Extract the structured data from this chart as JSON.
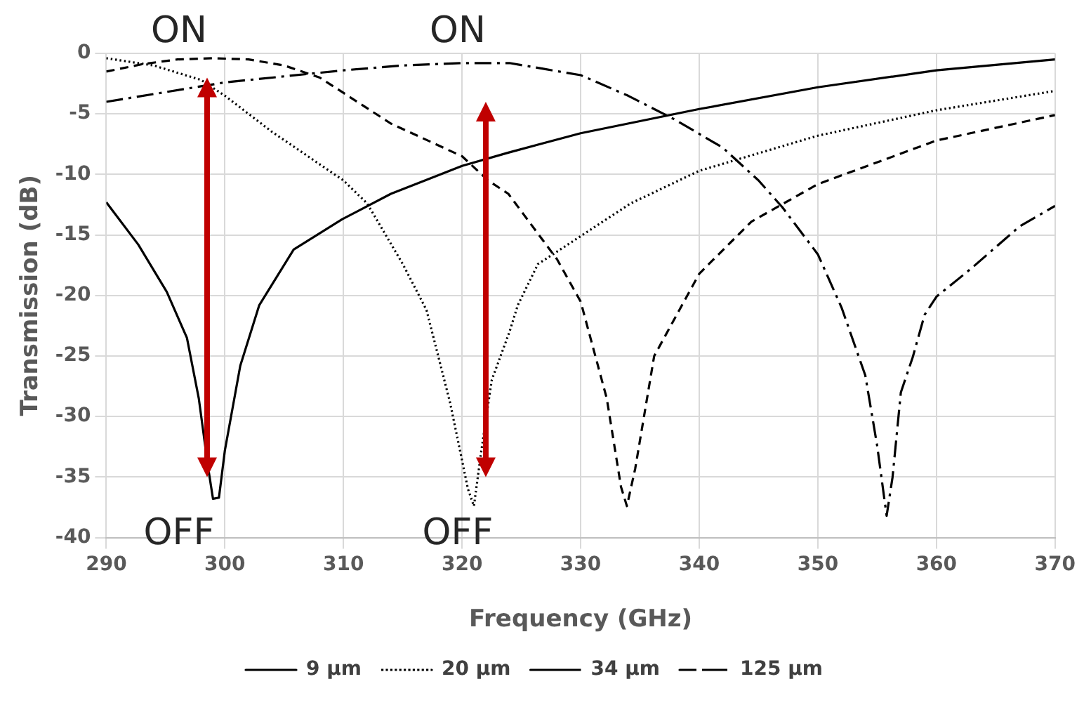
{
  "chart_data": {
    "type": "line",
    "xlabel": "Frequency (GHz)",
    "ylabel": "Transmission (dB)",
    "xlim": [
      290,
      370
    ],
    "xticks": [
      290,
      300,
      310,
      320,
      330,
      340,
      350,
      360,
      370
    ],
    "ylim": [
      -40,
      0
    ],
    "yticks": [
      -40,
      -35,
      -30,
      -25,
      -20,
      -15,
      -10,
      -5,
      0
    ],
    "grid": true,
    "legend": "bottom",
    "marker": "none",
    "annotations": [
      "ON",
      "ON",
      "OFF",
      "OFF"
    ],
    "series": [
      {
        "name": "9 µm",
        "color": "#000000",
        "line_style": "solid",
        "x": [
          290,
          292.7,
          295.1,
          296.8,
          297.8,
          298.6,
          299,
          299.5,
          300,
          301.3,
          302.9,
          305.8,
          309.9,
          314,
          320,
          323.9,
          330,
          340,
          350,
          360,
          370
        ],
        "values": [
          -12.3,
          -15.8,
          -19.7,
          -23.5,
          -28.5,
          -34.3,
          -36.8,
          -36.7,
          -32.8,
          -25.8,
          -20.8,
          -16.2,
          -13.7,
          -11.6,
          -9.3,
          -8.2,
          -6.6,
          -4.6,
          -2.8,
          -1.4,
          -0.5
        ]
      },
      {
        "name": "20 µm",
        "color": "#000000",
        "line_style": "dotted",
        "x": [
          290,
          294,
          298,
          300,
          304,
          310,
          312,
          315,
          317,
          319,
          320.5,
          321,
          321.6,
          322.5,
          324,
          324.7,
          326.4,
          330,
          334.2,
          340,
          350,
          360,
          370
        ],
        "values": [
          -0.4,
          -1,
          -2.2,
          -3.5,
          -6.5,
          -10.5,
          -12.4,
          -17.4,
          -21.2,
          -28.9,
          -36,
          -37.4,
          -33,
          -27,
          -23,
          -20.8,
          -17.4,
          -15.1,
          -12.4,
          -9.7,
          -6.8,
          -4.7,
          -3.1
        ]
      },
      {
        "name": "34 µm",
        "color": "#000000",
        "line_style": "dashed",
        "x": [
          290,
          293,
          296,
          299,
          302,
          305,
          308,
          314,
          320,
          322.2,
          323.9,
          328,
          330,
          332.2,
          333.4,
          333.9,
          334.6,
          336.2,
          340,
          344.4,
          350,
          360,
          370
        ],
        "values": [
          -1.5,
          -0.9,
          -0.5,
          -0.4,
          -0.5,
          -1,
          -2,
          -5.8,
          -8.5,
          -10.5,
          -11.6,
          -17,
          -20.5,
          -28.5,
          -35.8,
          -37.4,
          -34.3,
          -25,
          -18.2,
          -13.9,
          -10.8,
          -7.2,
          -5.1
        ]
      },
      {
        "name": "125 µm",
        "color": "#000000",
        "line_style": "dashdot",
        "x": [
          290,
          295,
          300,
          305,
          310,
          315,
          320,
          324,
          327,
          330,
          334,
          338,
          342,
          345,
          347,
          350,
          352,
          354,
          355,
          355.8,
          356.3,
          357,
          358,
          359,
          360,
          362.9,
          367,
          370
        ],
        "values": [
          -4,
          -3.2,
          -2.4,
          -1.9,
          -1.4,
          -1,
          -0.8,
          -0.8,
          -1.3,
          -1.8,
          -3.5,
          -5.5,
          -7.8,
          -10.5,
          -12.7,
          -16.6,
          -21,
          -26.6,
          -32.4,
          -38.2,
          -35,
          -28,
          -25.1,
          -21.6,
          -20.1,
          -17.8,
          -14.3,
          -12.6
        ]
      }
    ]
  }
}
